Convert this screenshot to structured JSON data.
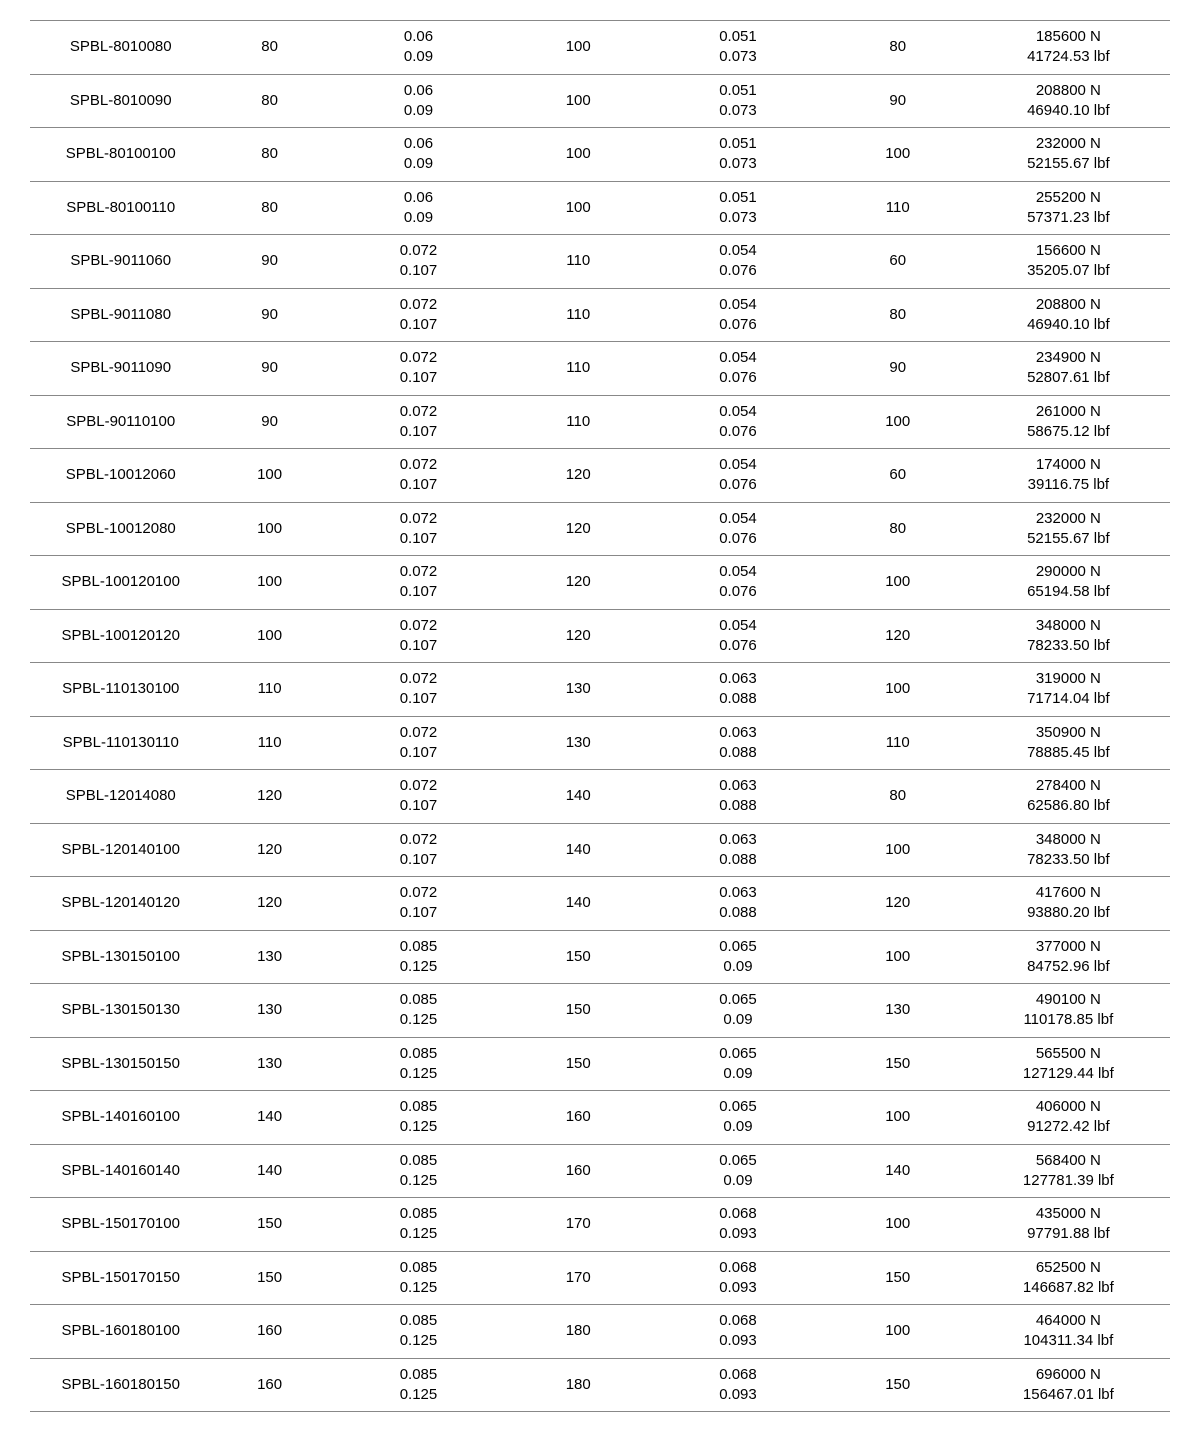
{
  "table": {
    "columns": [
      "part_no",
      "c2",
      "c3a",
      "c3b",
      "c4",
      "c5a",
      "c5b",
      "c6",
      "c7a",
      "c7b"
    ],
    "rows": [
      {
        "part_no": "SPBL-8010080",
        "c2": "80",
        "c3a": "0.06",
        "c3b": "0.09",
        "c4": "100",
        "c5a": "0.051",
        "c5b": "0.073",
        "c6": "80",
        "c7a": "185600 N",
        "c7b": "41724.53 lbf"
      },
      {
        "part_no": "SPBL-8010090",
        "c2": "80",
        "c3a": "0.06",
        "c3b": "0.09",
        "c4": "100",
        "c5a": "0.051",
        "c5b": "0.073",
        "c6": "90",
        "c7a": "208800 N",
        "c7b": "46940.10 lbf"
      },
      {
        "part_no": "SPBL-80100100",
        "c2": "80",
        "c3a": "0.06",
        "c3b": "0.09",
        "c4": "100",
        "c5a": "0.051",
        "c5b": "0.073",
        "c6": "100",
        "c7a": "232000 N",
        "c7b": "52155.67 lbf"
      },
      {
        "part_no": "SPBL-80100110",
        "c2": "80",
        "c3a": "0.06",
        "c3b": "0.09",
        "c4": "100",
        "c5a": "0.051",
        "c5b": "0.073",
        "c6": "110",
        "c7a": "255200 N",
        "c7b": "57371.23 lbf"
      },
      {
        "part_no": "SPBL-9011060",
        "c2": "90",
        "c3a": "0.072",
        "c3b": "0.107",
        "c4": "110",
        "c5a": "0.054",
        "c5b": "0.076",
        "c6": "60",
        "c7a": "156600 N",
        "c7b": "35205.07 lbf"
      },
      {
        "part_no": "SPBL-9011080",
        "c2": "90",
        "c3a": "0.072",
        "c3b": "0.107",
        "c4": "110",
        "c5a": "0.054",
        "c5b": "0.076",
        "c6": "80",
        "c7a": "208800 N",
        "c7b": "46940.10 lbf"
      },
      {
        "part_no": "SPBL-9011090",
        "c2": "90",
        "c3a": "0.072",
        "c3b": "0.107",
        "c4": "110",
        "c5a": "0.054",
        "c5b": "0.076",
        "c6": "90",
        "c7a": "234900 N",
        "c7b": "52807.61 lbf"
      },
      {
        "part_no": "SPBL-90110100",
        "c2": "90",
        "c3a": "0.072",
        "c3b": "0.107",
        "c4": "110",
        "c5a": "0.054",
        "c5b": "0.076",
        "c6": "100",
        "c7a": "261000 N",
        "c7b": "58675.12 lbf"
      },
      {
        "part_no": "SPBL-10012060",
        "c2": "100",
        "c3a": "0.072",
        "c3b": "0.107",
        "c4": "120",
        "c5a": "0.054",
        "c5b": "0.076",
        "c6": "60",
        "c7a": "174000 N",
        "c7b": "39116.75 lbf"
      },
      {
        "part_no": "SPBL-10012080",
        "c2": "100",
        "c3a": "0.072",
        "c3b": "0.107",
        "c4": "120",
        "c5a": "0.054",
        "c5b": "0.076",
        "c6": "80",
        "c7a": "232000 N",
        "c7b": "52155.67 lbf"
      },
      {
        "part_no": "SPBL-100120100",
        "c2": "100",
        "c3a": "0.072",
        "c3b": "0.107",
        "c4": "120",
        "c5a": "0.054",
        "c5b": "0.076",
        "c6": "100",
        "c7a": "290000 N",
        "c7b": "65194.58 lbf"
      },
      {
        "part_no": "SPBL-100120120",
        "c2": "100",
        "c3a": "0.072",
        "c3b": "0.107",
        "c4": "120",
        "c5a": "0.054",
        "c5b": "0.076",
        "c6": "120",
        "c7a": "348000 N",
        "c7b": "78233.50 lbf"
      },
      {
        "part_no": "SPBL-110130100",
        "c2": "110",
        "c3a": "0.072",
        "c3b": "0.107",
        "c4": "130",
        "c5a": "0.063",
        "c5b": "0.088",
        "c6": "100",
        "c7a": "319000 N",
        "c7b": "71714.04 lbf"
      },
      {
        "part_no": "SPBL-110130110",
        "c2": "110",
        "c3a": "0.072",
        "c3b": "0.107",
        "c4": "130",
        "c5a": "0.063",
        "c5b": "0.088",
        "c6": "110",
        "c7a": "350900 N",
        "c7b": "78885.45 lbf"
      },
      {
        "part_no": "SPBL-12014080",
        "c2": "120",
        "c3a": "0.072",
        "c3b": "0.107",
        "c4": "140",
        "c5a": "0.063",
        "c5b": "0.088",
        "c6": "80",
        "c7a": "278400 N",
        "c7b": "62586.80 lbf"
      },
      {
        "part_no": "SPBL-120140100",
        "c2": "120",
        "c3a": "0.072",
        "c3b": "0.107",
        "c4": "140",
        "c5a": "0.063",
        "c5b": "0.088",
        "c6": "100",
        "c7a": "348000 N",
        "c7b": "78233.50 lbf"
      },
      {
        "part_no": "SPBL-120140120",
        "c2": "120",
        "c3a": "0.072",
        "c3b": "0.107",
        "c4": "140",
        "c5a": "0.063",
        "c5b": "0.088",
        "c6": "120",
        "c7a": "417600 N",
        "c7b": "93880.20 lbf"
      },
      {
        "part_no": "SPBL-130150100",
        "c2": "130",
        "c3a": "0.085",
        "c3b": "0.125",
        "c4": "150",
        "c5a": "0.065",
        "c5b": "0.09",
        "c6": "100",
        "c7a": "377000 N",
        "c7b": "84752.96 lbf"
      },
      {
        "part_no": "SPBL-130150130",
        "c2": "130",
        "c3a": "0.085",
        "c3b": "0.125",
        "c4": "150",
        "c5a": "0.065",
        "c5b": "0.09",
        "c6": "130",
        "c7a": "490100 N",
        "c7b": "110178.85 lbf"
      },
      {
        "part_no": "SPBL-130150150",
        "c2": "130",
        "c3a": "0.085",
        "c3b": "0.125",
        "c4": "150",
        "c5a": "0.065",
        "c5b": "0.09",
        "c6": "150",
        "c7a": "565500 N",
        "c7b": "127129.44 lbf"
      },
      {
        "part_no": "SPBL-140160100",
        "c2": "140",
        "c3a": "0.085",
        "c3b": "0.125",
        "c4": "160",
        "c5a": "0.065",
        "c5b": "0.09",
        "c6": "100",
        "c7a": "406000 N",
        "c7b": "91272.42 lbf"
      },
      {
        "part_no": "SPBL-140160140",
        "c2": "140",
        "c3a": "0.085",
        "c3b": "0.125",
        "c4": "160",
        "c5a": "0.065",
        "c5b": "0.09",
        "c6": "140",
        "c7a": "568400 N",
        "c7b": "127781.39 lbf"
      },
      {
        "part_no": "SPBL-150170100",
        "c2": "150",
        "c3a": "0.085",
        "c3b": "0.125",
        "c4": "170",
        "c5a": "0.068",
        "c5b": "0.093",
        "c6": "100",
        "c7a": "435000 N",
        "c7b": "97791.88 lbf"
      },
      {
        "part_no": "SPBL-150170150",
        "c2": "150",
        "c3a": "0.085",
        "c3b": "0.125",
        "c4": "170",
        "c5a": "0.068",
        "c5b": "0.093",
        "c6": "150",
        "c7a": "652500 N",
        "c7b": "146687.82 lbf"
      },
      {
        "part_no": "SPBL-160180100",
        "c2": "160",
        "c3a": "0.085",
        "c3b": "0.125",
        "c4": "180",
        "c5a": "0.068",
        "c5b": "0.093",
        "c6": "100",
        "c7a": "464000 N",
        "c7b": "104311.34 lbf"
      },
      {
        "part_no": "SPBL-160180150",
        "c2": "160",
        "c3a": "0.085",
        "c3b": "0.125",
        "c4": "180",
        "c5a": "0.068",
        "c5b": "0.093",
        "c6": "150",
        "c7a": "696000 N",
        "c7b": "156467.01 lbf"
      }
    ]
  }
}
